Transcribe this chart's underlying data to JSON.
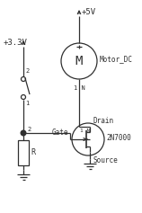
{
  "bg_color": "#ffffff",
  "line_color": "#303030",
  "text_color": "#303030",
  "vcc5_label": "+5V",
  "vcc33_label": "+3.3V",
  "motor_label": "Motor_DC",
  "mosfet_label": "2N7000",
  "gate_label": "Gate",
  "drain_label": "Drain",
  "source_label": "Source",
  "resistor_label": "R",
  "figsize": [
    1.58,
    2.37
  ],
  "dpi": 100
}
